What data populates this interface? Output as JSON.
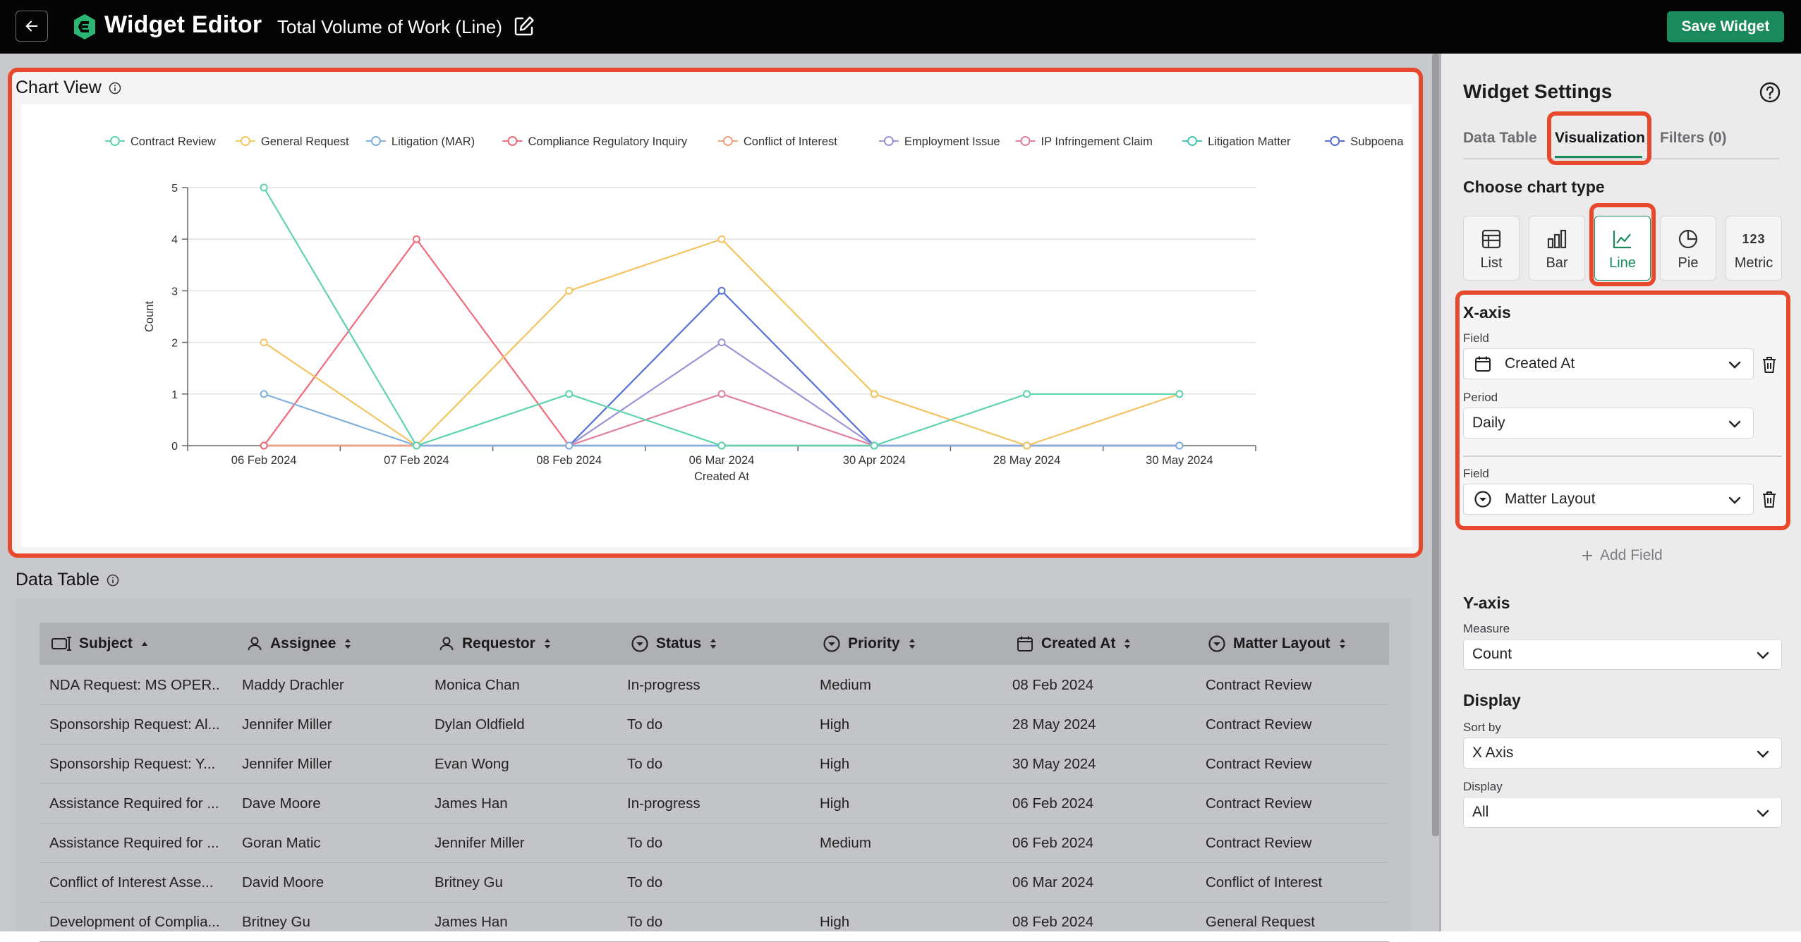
{
  "header": {
    "back_label": "",
    "app_title": "Widget Editor",
    "widget_name": "Total Volume of Work (Line)",
    "save_label": "Save Widget"
  },
  "chart_panel": {
    "title": "Chart View"
  },
  "table_panel": {
    "title": "Data Table"
  },
  "chart_data": {
    "type": "line",
    "title": "",
    "xlabel": "Created At",
    "ylabel": "Count",
    "ylim": [
      0,
      5
    ],
    "yticks": [
      "0",
      "1",
      "2",
      "3",
      "4",
      "5"
    ],
    "grid": true,
    "legend_position": "top",
    "categories": [
      "06 Feb 2024",
      "07 Feb 2024",
      "08 Feb 2024",
      "06 Mar 2024",
      "30 Apr 2024",
      "28 May 2024",
      "30 May 2024"
    ],
    "series": [
      {
        "name": "Contract Review",
        "color": "#5ed3b0",
        "values": [
          5,
          0,
          1,
          0,
          0,
          1,
          1
        ]
      },
      {
        "name": "General Request",
        "color": "#f3c460",
        "values": [
          2,
          0,
          3,
          4,
          1,
          0,
          1
        ]
      },
      {
        "name": "Litigation (MAR)",
        "color": "#7fb0e0",
        "values": [
          1,
          0,
          0,
          0,
          0,
          0,
          0
        ]
      },
      {
        "name": "Compliance Regulatory Inquiry",
        "color": "#f06a78",
        "values": [
          0,
          4,
          0,
          0,
          0,
          0,
          0
        ]
      },
      {
        "name": "Conflict of Interest",
        "color": "#f4a07a",
        "values": [
          0,
          0,
          0,
          0,
          0,
          0,
          0
        ]
      },
      {
        "name": "Employment Issue",
        "color": "#9a93d6",
        "values": [
          0,
          0,
          0,
          2,
          0,
          0,
          0
        ]
      },
      {
        "name": "IP Infringement Claim",
        "color": "#e07fa2",
        "values": [
          0,
          0,
          0,
          1,
          0,
          0,
          0
        ]
      },
      {
        "name": "Litigation Matter",
        "color": "#45c7b5",
        "values": [
          0,
          0,
          0,
          0,
          0,
          0,
          0
        ]
      },
      {
        "name": "Subpoena",
        "color": "#5570d6",
        "values": [
          0,
          0,
          0,
          3,
          0,
          0,
          0
        ]
      }
    ]
  },
  "table": {
    "columns": [
      {
        "label": "Subject",
        "icon": "subject-icon",
        "sort": "asc"
      },
      {
        "label": "Assignee",
        "icon": "user-icon",
        "sort": "both"
      },
      {
        "label": "Requestor",
        "icon": "user-icon",
        "sort": "both"
      },
      {
        "label": "Status",
        "icon": "dropdown-circle-icon",
        "sort": "both"
      },
      {
        "label": "Priority",
        "icon": "dropdown-circle-icon",
        "sort": "both"
      },
      {
        "label": "Created At",
        "icon": "calendar-icon",
        "sort": "both"
      },
      {
        "label": "Matter Layout",
        "icon": "dropdown-circle-icon",
        "sort": "both"
      }
    ],
    "rows": [
      [
        "NDA Request: MS OPER...",
        "Maddy Drachler",
        "Monica Chan",
        "In-progress",
        "Medium",
        "08 Feb 2024",
        "Contract Review"
      ],
      [
        "Sponsorship Request: Al...",
        "Jennifer Miller",
        "Dylan Oldfield",
        "To do",
        "High",
        "28 May 2024",
        "Contract Review"
      ],
      [
        "Sponsorship Request: Y...",
        "Jennifer Miller",
        "Evan Wong",
        "To do",
        "High",
        "30 May 2024",
        "Contract Review"
      ],
      [
        "Assistance Required for ...",
        "Dave Moore",
        "James Han",
        "In-progress",
        "High",
        "06 Feb 2024",
        "Contract Review"
      ],
      [
        "Assistance Required for ...",
        "Goran Matic",
        "Jennifer Miller",
        "To do",
        "Medium",
        "06 Feb 2024",
        "Contract Review"
      ],
      [
        "Conflict of Interest Asse...",
        "David Moore",
        "Britney Gu",
        "To do",
        "",
        "06 Mar 2024",
        "Conflict of Interest"
      ],
      [
        "Development of Complia...",
        "Britney Gu",
        "James Han",
        "To do",
        "High",
        "08 Feb 2024",
        "General Request"
      ]
    ]
  },
  "settings": {
    "title": "Widget Settings",
    "tabs": [
      {
        "label": "Data Table",
        "active": false
      },
      {
        "label": "Visualization",
        "active": true
      },
      {
        "label": "Filters (0)",
        "active": false
      }
    ],
    "chart_type_label": "Choose chart type",
    "chart_types": [
      {
        "label": "List",
        "icon": "table-icon",
        "active": false
      },
      {
        "label": "Bar",
        "icon": "bar-chart-icon",
        "active": false
      },
      {
        "label": "Line",
        "icon": "line-chart-icon",
        "active": true
      },
      {
        "label": "Pie",
        "icon": "pie-chart-icon",
        "active": false
      },
      {
        "label": "Metric",
        "icon": "metric-icon",
        "glyph": "123",
        "active": false
      }
    ],
    "xaxis": {
      "title": "X-axis",
      "field1_label": "Field",
      "field1_value": "Created At",
      "period_label": "Period",
      "period_value": "Daily",
      "field2_label": "Field",
      "field2_value": "Matter Layout",
      "add_field_label": "Add Field"
    },
    "yaxis": {
      "title": "Y-axis",
      "measure_label": "Measure",
      "measure_value": "Count"
    },
    "display": {
      "title": "Display",
      "sort_label": "Sort by",
      "sort_value": "X Axis",
      "display_label": "Display",
      "display_value": "All"
    }
  },
  "colors": {
    "brand_green": "#1a8a5c",
    "highlight_red": "#e8492c",
    "topbar_bg": "#050505"
  }
}
